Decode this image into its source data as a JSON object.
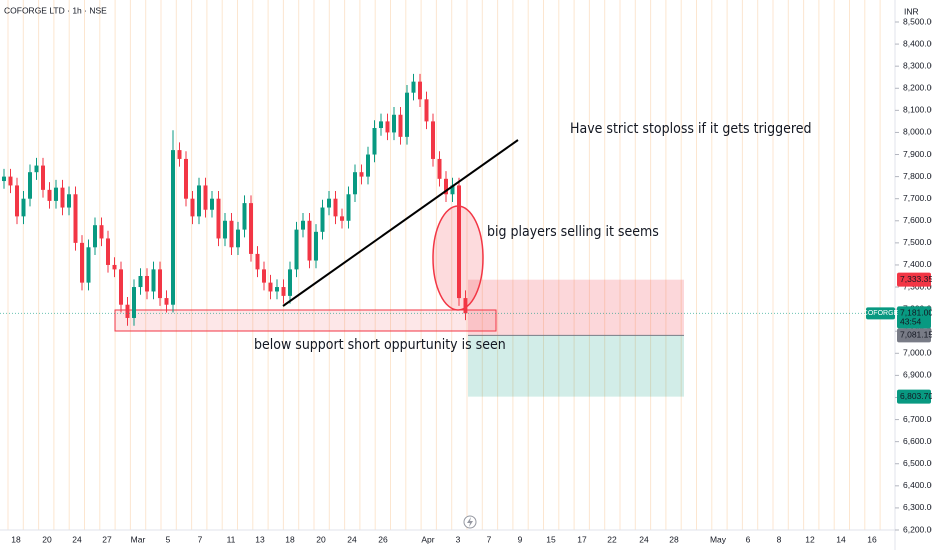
{
  "chart_data": {
    "type": "candlestick",
    "title": "COFORGE LTD · 1h · NSE",
    "currency": "INR",
    "ylim": [
      6200,
      8500
    ],
    "yticks": [
      {
        "value": 6200,
        "label": "6,200.00"
      },
      {
        "value": 6300,
        "label": "6,300.00"
      },
      {
        "value": 6400,
        "label": "6,400.00"
      },
      {
        "value": 6500,
        "label": "6,500.00"
      },
      {
        "value": 6600,
        "label": "6,600.00"
      },
      {
        "value": 6700,
        "label": "6,700.00"
      },
      {
        "value": 6800,
        "label": "6,800.00"
      },
      {
        "value": 6900,
        "label": "6,900.00"
      },
      {
        "value": 7000,
        "label": "7,000.00"
      },
      {
        "value": 7100,
        "label": "7,100.00"
      },
      {
        "value": 7200,
        "label": "7,200.00"
      },
      {
        "value": 7300,
        "label": "7,300.00"
      },
      {
        "value": 7400,
        "label": "7,400.00"
      },
      {
        "value": 7500,
        "label": "7,500.00"
      },
      {
        "value": 7600,
        "label": "7,600.00"
      },
      {
        "value": 7700,
        "label": "7,700.00"
      },
      {
        "value": 7800,
        "label": "7,800.00"
      },
      {
        "value": 7900,
        "label": "7,900.00"
      },
      {
        "value": 8000,
        "label": "8,000.00"
      },
      {
        "value": 8100,
        "label": "8,100.00"
      },
      {
        "value": 8200,
        "label": "8,200.00"
      },
      {
        "value": 8300,
        "label": "8,300.00"
      },
      {
        "value": 8400,
        "label": "8,400.00"
      },
      {
        "value": 8500,
        "label": "8,500.00"
      }
    ],
    "x_labels": [
      "18",
      "20",
      "24",
      "27",
      "Mar",
      "5",
      "7",
      "11",
      "13",
      "18",
      "20",
      "24",
      "26",
      "Apr",
      "3",
      "7",
      "9",
      "15",
      "17",
      "22",
      "24",
      "28",
      "May",
      "6",
      "8",
      "12",
      "14",
      "16"
    ],
    "up_color": "#089981",
    "down_color": "#f23645",
    "open": [
      7780,
      7800,
      7760,
      7620,
      7700,
      7820,
      7850,
      7740,
      7690,
      7750,
      7660,
      7720,
      7500,
      7320,
      7480,
      7580,
      7520,
      7400,
      7380,
      7220,
      7160,
      7300,
      7350,
      7280,
      7380,
      7250,
      7220,
      7920,
      7880,
      7700,
      7620,
      7760,
      7650,
      7700,
      7520,
      7600,
      7480,
      7560,
      7680,
      7450,
      7380,
      7320,
      7280,
      7300,
      7260,
      7380,
      7560,
      7600,
      7420,
      7550,
      7660,
      7700,
      7620,
      7600,
      7720,
      7820,
      7800,
      7900,
      8020,
      8050,
      8000,
      8080,
      7980,
      8180,
      8230,
      8150,
      8050,
      7880,
      7790,
      7720,
      7760,
      7250
    ],
    "high": [
      7835,
      7835,
      7795,
      7735,
      7855,
      7885,
      7885,
      7775,
      7785,
      7785,
      7755,
      7755,
      7535,
      7515,
      7615,
      7615,
      7555,
      7435,
      7415,
      7255,
      7335,
      7385,
      7385,
      7415,
      7415,
      7285,
      8010,
      7955,
      7915,
      7735,
      7795,
      7795,
      7735,
      7735,
      7635,
      7635,
      7595,
      7715,
      7715,
      7485,
      7415,
      7355,
      7335,
      7335,
      7415,
      7595,
      7635,
      7635,
      7585,
      7695,
      7735,
      7735,
      7655,
      7755,
      7855,
      7855,
      7935,
      8055,
      8085,
      8085,
      8115,
      8115,
      8215,
      8265,
      8265,
      8185,
      8085,
      7915,
      7825,
      7795,
      7795,
      7285
    ],
    "low": [
      7745,
      7725,
      7585,
      7585,
      7665,
      7785,
      7705,
      7655,
      7655,
      7625,
      7625,
      7465,
      7285,
      7285,
      7445,
      7485,
      7365,
      7345,
      7185,
      7125,
      7125,
      7265,
      7245,
      7245,
      7215,
      7185,
      7185,
      7845,
      7665,
      7585,
      7585,
      7615,
      7615,
      7485,
      7485,
      7445,
      7445,
      7525,
      7415,
      7345,
      7285,
      7245,
      7245,
      7225,
      7225,
      7345,
      7525,
      7385,
      7385,
      7515,
      7625,
      7585,
      7565,
      7565,
      7685,
      7765,
      7765,
      7865,
      7985,
      7965,
      7965,
      7945,
      7945,
      8145,
      8115,
      8015,
      7845,
      7755,
      7685,
      7685,
      7215,
      7150
    ],
    "close": [
      7800,
      7760,
      7620,
      7700,
      7820,
      7850,
      7740,
      7690,
      7750,
      7660,
      7720,
      7500,
      7320,
      7480,
      7580,
      7520,
      7400,
      7380,
      7220,
      7160,
      7300,
      7350,
      7280,
      7380,
      7250,
      7220,
      7920,
      7880,
      7700,
      7620,
      7760,
      7650,
      7700,
      7520,
      7600,
      7480,
      7560,
      7680,
      7450,
      7380,
      7320,
      7280,
      7300,
      7260,
      7380,
      7560,
      7600,
      7420,
      7550,
      7660,
      7700,
      7620,
      7600,
      7720,
      7820,
      7800,
      7900,
      8020,
      8050,
      8000,
      8080,
      7980,
      8180,
      8230,
      8150,
      8050,
      7880,
      7790,
      7720,
      7760,
      7250,
      7181
    ],
    "last_price": {
      "symbol": "COFORGE",
      "value": 7181,
      "label": "7,181.00",
      "countdown": "43:54"
    },
    "position": {
      "stop": {
        "value": 7333.35,
        "label": "7,333.35"
      },
      "entry": {
        "value": 7081.15,
        "label": "7,081.15"
      },
      "target": {
        "value": 6803.7,
        "label": "6,803.70"
      }
    },
    "annotations": [
      "Have strict stoploss if it gets triggered",
      "big players selling it seems",
      "below support short oppurtunity is seen"
    ]
  }
}
